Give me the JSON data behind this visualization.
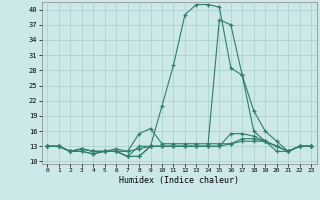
{
  "xlabel": "Humidex (Indice chaleur)",
  "bg_color": "#cce8e8",
  "grid_color": "#b0d4d4",
  "line_color": "#2e7d6e",
  "xlim": [
    -0.5,
    23.5
  ],
  "ylim": [
    9.5,
    41.5
  ],
  "yticks": [
    10,
    13,
    16,
    19,
    22,
    25,
    28,
    31,
    34,
    37,
    40
  ],
  "xticks": [
    0,
    1,
    2,
    3,
    4,
    5,
    6,
    7,
    8,
    9,
    10,
    11,
    12,
    13,
    14,
    15,
    16,
    17,
    18,
    19,
    20,
    21,
    22,
    23
  ],
  "lines": [
    {
      "x": [
        0,
        1,
        2,
        3,
        4,
        5,
        6,
        7,
        8,
        9,
        10,
        11,
        12,
        13,
        14,
        15,
        16,
        17,
        18,
        19,
        20,
        21,
        22,
        23
      ],
      "y": [
        13,
        13,
        12,
        12,
        11.5,
        12,
        12,
        11,
        11,
        13,
        21,
        29,
        39,
        41,
        41,
        40.5,
        28.5,
        27,
        20,
        16,
        14,
        12,
        13,
        13
      ]
    },
    {
      "x": [
        0,
        1,
        2,
        3,
        4,
        5,
        6,
        7,
        8,
        9,
        10,
        11,
        12,
        13,
        14,
        15,
        16,
        17,
        18,
        19,
        20,
        21,
        22,
        23
      ],
      "y": [
        13,
        13,
        12,
        12,
        11.5,
        12,
        12,
        11,
        11,
        13,
        13,
        13,
        13,
        13,
        13,
        38,
        37,
        27,
        16,
        14,
        12,
        12,
        13,
        13
      ]
    },
    {
      "x": [
        0,
        1,
        2,
        3,
        4,
        5,
        6,
        7,
        8,
        9,
        10,
        11,
        12,
        13,
        14,
        15,
        16,
        17,
        18,
        19,
        20,
        21,
        22,
        23
      ],
      "y": [
        13,
        13,
        12,
        12.5,
        12,
        12,
        12.5,
        12,
        15.5,
        16.5,
        13.5,
        13.5,
        13.5,
        13.5,
        13.5,
        13.5,
        13.5,
        14,
        14,
        14,
        13,
        12,
        13,
        13
      ]
    },
    {
      "x": [
        0,
        1,
        2,
        3,
        4,
        5,
        6,
        7,
        8,
        9,
        10,
        11,
        12,
        13,
        14,
        15,
        16,
        17,
        18,
        19,
        20,
        21,
        22,
        23
      ],
      "y": [
        13,
        13,
        12,
        12.5,
        12,
        12,
        12,
        11,
        13,
        13,
        13,
        13,
        13,
        13,
        13,
        13,
        13.5,
        14.5,
        14.5,
        14,
        13,
        12,
        13,
        13
      ]
    },
    {
      "x": [
        0,
        1,
        2,
        3,
        4,
        5,
        6,
        7,
        8,
        9,
        10,
        11,
        12,
        13,
        14,
        15,
        16,
        17,
        18,
        19,
        20,
        21,
        22,
        23
      ],
      "y": [
        13,
        13,
        12,
        12.5,
        12,
        12,
        12,
        12,
        12.5,
        13,
        13,
        13,
        13,
        13,
        13,
        13,
        15.5,
        15.5,
        15,
        14,
        13,
        12,
        13,
        13
      ]
    }
  ]
}
